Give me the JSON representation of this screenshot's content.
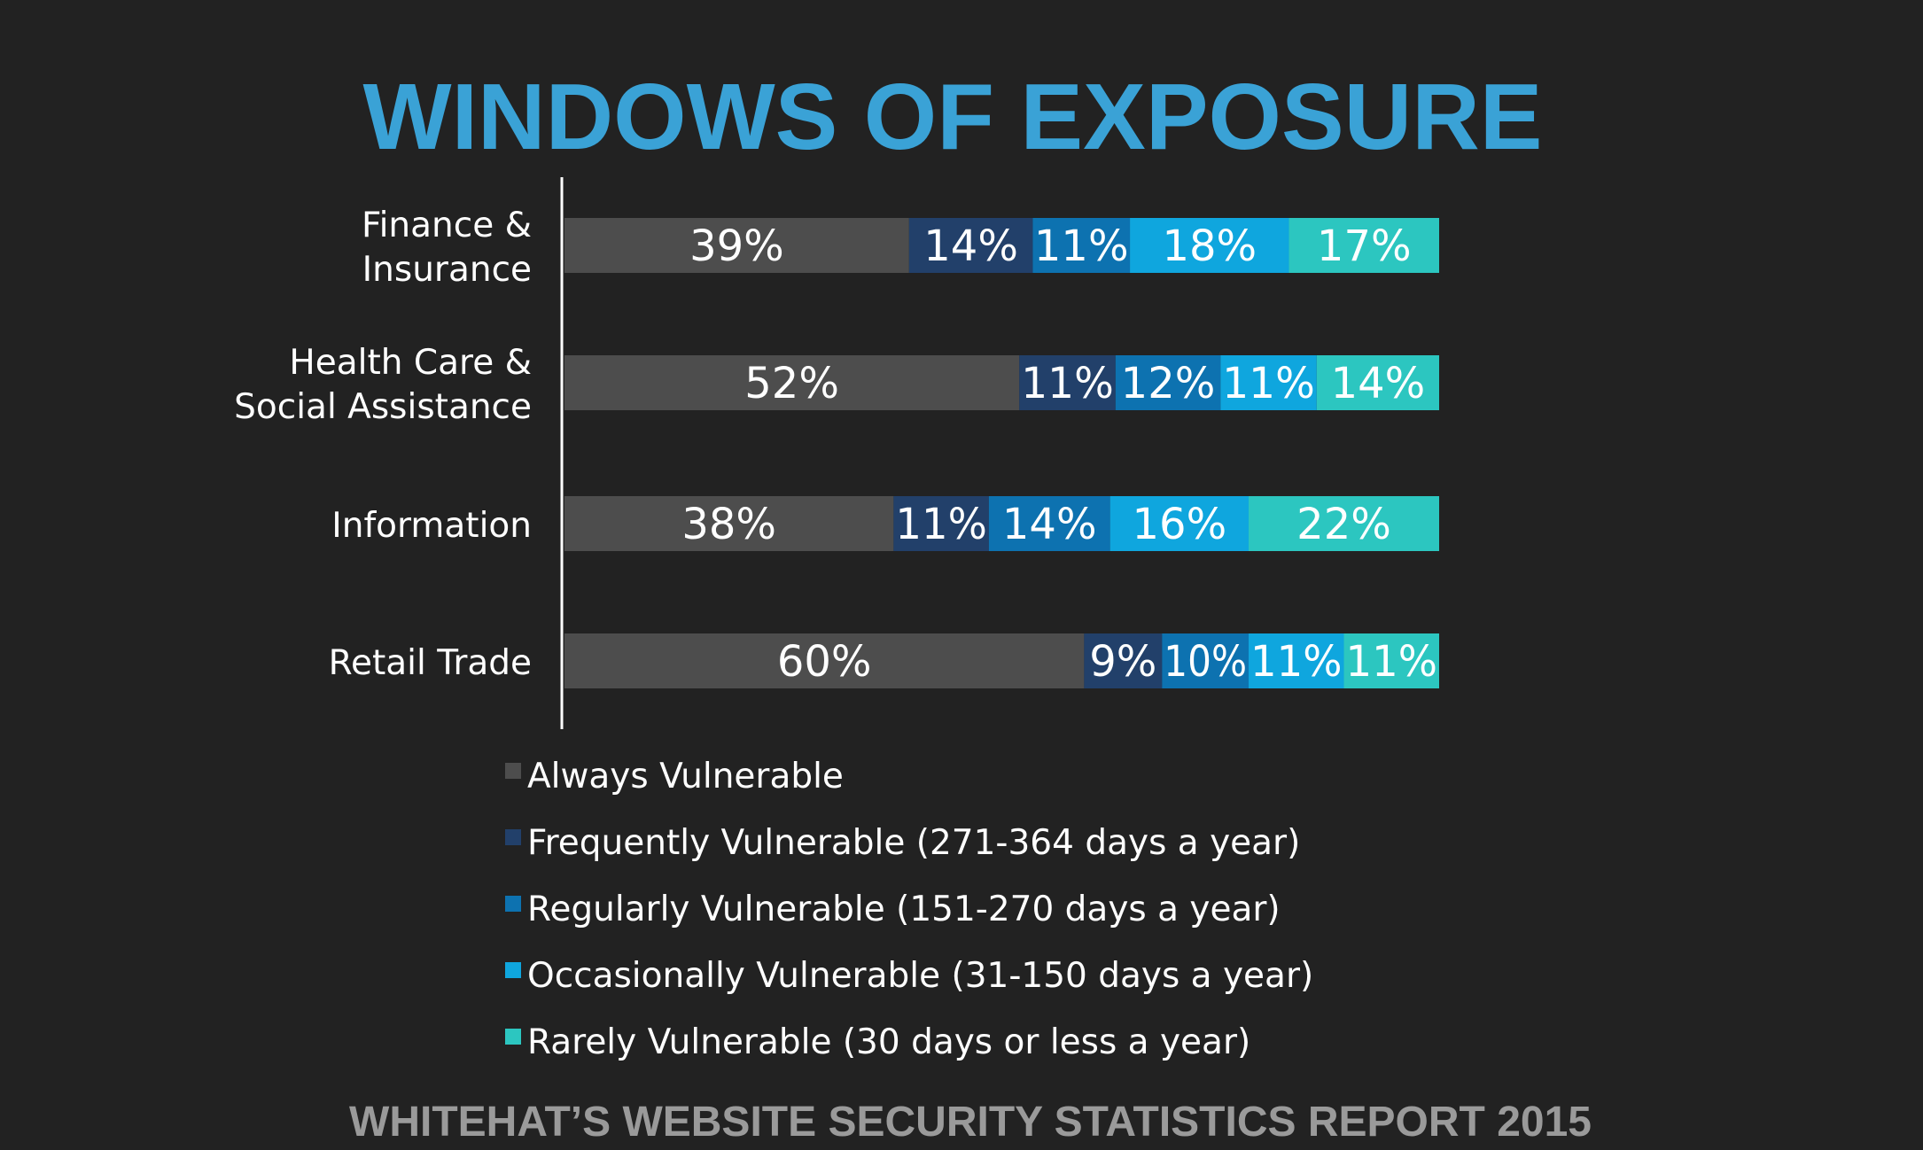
{
  "chart_data": {
    "type": "bar",
    "orientation": "horizontal",
    "stacked": true,
    "title": "WINDOWS OF EXPOSURE",
    "footer": "WHITEHAT’S WEBSITE SECURITY STATISTICS REPORT 2015",
    "categories": [
      [
        "Finance &",
        "Insurance"
      ],
      [
        "Health Care &",
        "Social Assistance"
      ],
      [
        "Information"
      ],
      [
        "Retail Trade"
      ]
    ],
    "series": [
      {
        "name": "Always Vulnerable",
        "color": "#4d4d4d",
        "values": [
          39,
          52,
          38,
          60
        ]
      },
      {
        "name": "Frequently Vulnerable (271-364 days a year)",
        "color": "#22406a",
        "values": [
          14,
          11,
          11,
          9
        ]
      },
      {
        "name": "Regularly Vulnerable (151-270 days a year)",
        "color": "#0d72b0",
        "values": [
          11,
          12,
          14,
          10
        ]
      },
      {
        "name": "Occasionally Vulnerable (31-150 days a year)",
        "color": "#0fa6de",
        "values": [
          18,
          11,
          16,
          11
        ]
      },
      {
        "name": "Rarely Vulnerable (30 days or less a year)",
        "color": "#2cc6c0",
        "values": [
          17,
          14,
          22,
          11
        ]
      }
    ],
    "value_suffix": "%",
    "legend_position": "bottom",
    "grid": false
  },
  "colors": {
    "background": "#222222",
    "title": "#3aa2d6",
    "text": "#ffffff",
    "footer": "#9a9a9a",
    "axis": "#ffffff"
  }
}
